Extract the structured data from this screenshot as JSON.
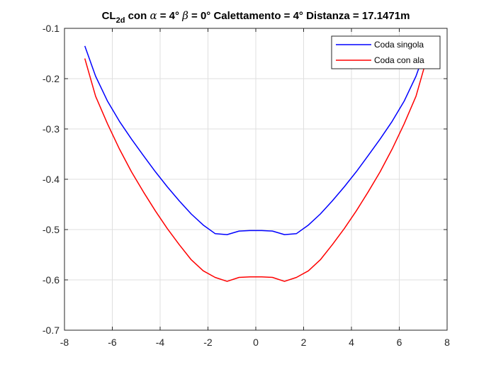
{
  "chart_data": {
    "type": "line",
    "title": {
      "prefix": "CL",
      "subscript": "2d",
      "part1": " con ",
      "alpha_symbol": "α",
      "part2": " = 4° ",
      "beta_symbol": "β",
      "part3": " = 0° Calettamento = 4° Distanza = 17.1471m"
    },
    "xlabel": "",
    "ylabel": "",
    "xlim": [
      -8,
      8
    ],
    "ylim": [
      -0.7,
      -0.1
    ],
    "xticks": [
      -8,
      -6,
      -4,
      -2,
      0,
      2,
      4,
      6,
      8
    ],
    "yticks": [
      -0.7,
      -0.6,
      -0.5,
      -0.4,
      -0.3,
      -0.2,
      -0.1
    ],
    "xtick_labels": [
      "-8",
      "-6",
      "-4",
      "-2",
      "0",
      "2",
      "4",
      "6",
      "8"
    ],
    "ytick_labels": [
      "-0.7",
      "-0.6",
      "-0.5",
      "-0.4",
      "-0.3",
      "-0.2",
      "-0.1"
    ],
    "grid": true,
    "legend_position": "top-right",
    "series": [
      {
        "name": "Coda singola",
        "color": "#0000ff",
        "x": [
          -7.15,
          -6.7,
          -6.2,
          -5.7,
          -5.2,
          -4.7,
          -4.2,
          -3.7,
          -3.2,
          -2.7,
          -2.2,
          -1.7,
          -1.2,
          -0.7,
          -0.25,
          0.25,
          0.7,
          1.2,
          1.7,
          2.2,
          2.7,
          3.2,
          3.7,
          4.2,
          4.7,
          5.2,
          5.7,
          6.2,
          6.7,
          7.15
        ],
        "y": [
          -0.135,
          -0.195,
          -0.245,
          -0.285,
          -0.32,
          -0.353,
          -0.385,
          -0.415,
          -0.443,
          -0.469,
          -0.491,
          -0.508,
          -0.51,
          -0.503,
          -0.502,
          -0.502,
          -0.503,
          -0.51,
          -0.508,
          -0.491,
          -0.469,
          -0.443,
          -0.415,
          -0.385,
          -0.353,
          -0.32,
          -0.285,
          -0.245,
          -0.195,
          -0.135
        ]
      },
      {
        "name": "Coda con ala",
        "color": "#ff0000",
        "x": [
          -7.15,
          -6.7,
          -6.2,
          -5.7,
          -5.2,
          -4.7,
          -4.2,
          -3.7,
          -3.2,
          -2.7,
          -2.2,
          -1.7,
          -1.2,
          -0.7,
          -0.25,
          0.25,
          0.7,
          1.2,
          1.7,
          2.2,
          2.7,
          3.2,
          3.7,
          4.2,
          4.7,
          5.2,
          5.7,
          6.2,
          6.7,
          7.15
        ],
        "y": [
          -0.16,
          -0.235,
          -0.29,
          -0.34,
          -0.385,
          -0.425,
          -0.463,
          -0.498,
          -0.53,
          -0.56,
          -0.582,
          -0.595,
          -0.603,
          -0.595,
          -0.594,
          -0.594,
          -0.595,
          -0.603,
          -0.595,
          -0.582,
          -0.56,
          -0.53,
          -0.498,
          -0.463,
          -0.425,
          -0.385,
          -0.34,
          -0.29,
          -0.235,
          -0.16
        ]
      }
    ]
  }
}
